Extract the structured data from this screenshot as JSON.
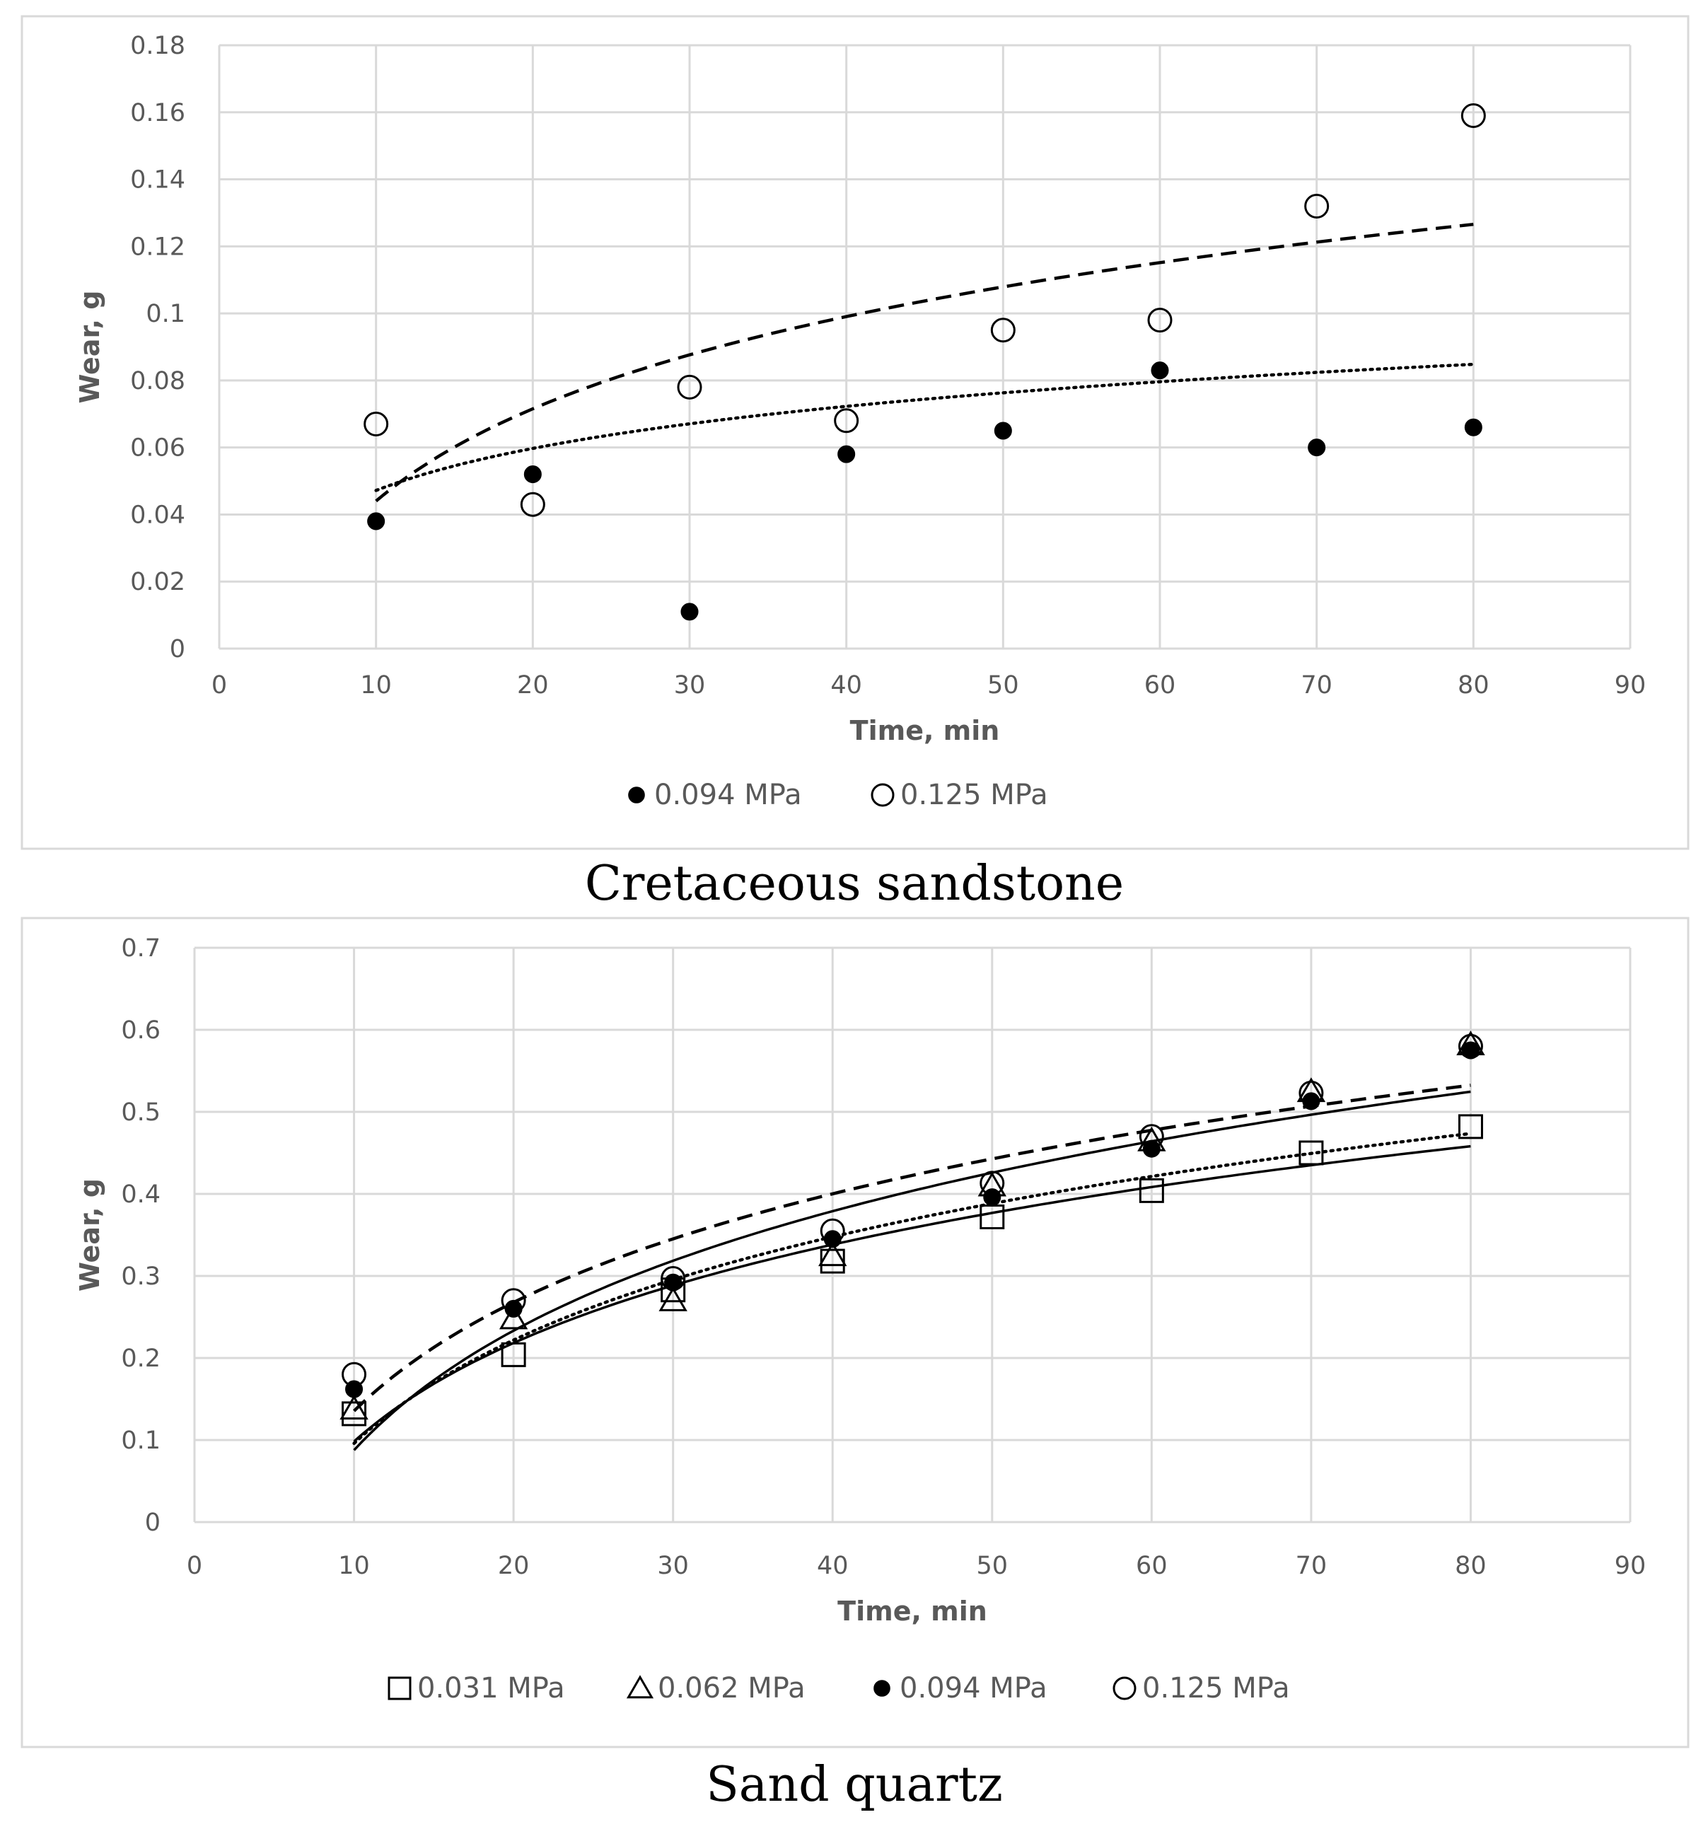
{
  "chart_data": [
    {
      "type": "scatter",
      "title": "",
      "caption": "Cretaceous sandstone",
      "xlabel": "Time, min",
      "ylabel": "Wear, g",
      "xlim": [
        0,
        90
      ],
      "ylim": [
        0,
        0.18
      ],
      "xticks": [
        0,
        10,
        20,
        30,
        40,
        50,
        60,
        70,
        80,
        90
      ],
      "xtick_labels": [
        "0",
        "10",
        "20",
        "30",
        "40",
        "50",
        "60",
        "70",
        "80",
        "90"
      ],
      "yticks": [
        0,
        0.02,
        0.04,
        0.06,
        0.08,
        0.1,
        0.12,
        0.14,
        0.16,
        0.18
      ],
      "ytick_labels": [
        "0",
        "0.02",
        "0.04",
        "0.06",
        "0.08",
        "0.1",
        "0.12",
        "0.14",
        "0.16",
        "0.18"
      ],
      "grid": true,
      "legend_position": "bottom",
      "series": [
        {
          "name": "0.094 MPa",
          "marker": "filled-circle",
          "x": [
            10,
            20,
            30,
            40,
            50,
            60,
            70,
            80
          ],
          "y": [
            0.038,
            0.052,
            0.011,
            0.058,
            0.065,
            0.083,
            0.06,
            0.066
          ],
          "trend": {
            "type": "logarithmic",
            "style": "dotted",
            "a": 0.0055,
            "b": 0.0181
          }
        },
        {
          "name": "0.125 MPa",
          "marker": "open-circle",
          "x": [
            10,
            20,
            30,
            40,
            50,
            60,
            70,
            80
          ],
          "y": [
            0.067,
            0.043,
            0.078,
            0.068,
            0.095,
            0.098,
            0.132,
            0.159
          ],
          "trend": {
            "type": "logarithmic",
            "style": "dashed",
            "a": -0.0474,
            "b": 0.0397
          }
        }
      ]
    },
    {
      "type": "scatter",
      "title": "",
      "caption": "Sand quartz",
      "xlabel": "Time, min",
      "ylabel": "Wear, g",
      "xlim": [
        0,
        90
      ],
      "ylim": [
        0,
        0.7
      ],
      "xticks": [
        0,
        10,
        20,
        30,
        40,
        50,
        60,
        70,
        80,
        90
      ],
      "xtick_labels": [
        "0",
        "10",
        "20",
        "30",
        "40",
        "50",
        "60",
        "70",
        "80",
        "90"
      ],
      "yticks": [
        0,
        0.1,
        0.2,
        0.3,
        0.4,
        0.5,
        0.6,
        0.7
      ],
      "ytick_labels": [
        "0",
        "0.1",
        "0.2",
        "0.3",
        "0.4",
        "0.5",
        "0.6",
        "0.7"
      ],
      "grid": true,
      "legend_position": "bottom",
      "series": [
        {
          "name": "0.031 MPa",
          "marker": "open-square",
          "x": [
            10,
            20,
            30,
            40,
            50,
            60,
            70,
            80
          ],
          "y": [
            0.132,
            0.204,
            0.283,
            0.318,
            0.372,
            0.404,
            0.45,
            0.482
          ],
          "trend": {
            "type": "logarithmic",
            "style": "solid",
            "a": -0.3,
            "b": 0.173
          }
        },
        {
          "name": "0.062 MPa",
          "marker": "open-triangle",
          "x": [
            10,
            20,
            30,
            40,
            50,
            60,
            70,
            80
          ],
          "y": [
            0.138,
            0.248,
            0.27,
            0.325,
            0.41,
            0.465,
            0.525,
            0.582
          ],
          "trend": {
            "type": "logarithmic",
            "style": "solid",
            "a": -0.3961,
            "b": 0.2101
          }
        },
        {
          "name": "0.094 MPa",
          "marker": "filled-circle",
          "x": [
            10,
            20,
            30,
            40,
            50,
            60,
            70,
            80
          ],
          "y": [
            0.162,
            0.26,
            0.292,
            0.345,
            0.396,
            0.455,
            0.513,
            0.575
          ],
          "trend": {
            "type": "logarithmic",
            "style": "dotted",
            "a": -0.3222,
            "b": 0.1816
          }
        },
        {
          "name": "0.125 MPa",
          "marker": "open-circle",
          "x": [
            10,
            20,
            30,
            40,
            50,
            60,
            70,
            80
          ],
          "y": [
            0.18,
            0.27,
            0.297,
            0.355,
            0.413,
            0.47,
            0.523,
            0.58
          ],
          "trend": {
            "type": "logarithmic",
            "style": "dashed",
            "a": -0.3041,
            "b": 0.1909
          }
        }
      ]
    }
  ]
}
